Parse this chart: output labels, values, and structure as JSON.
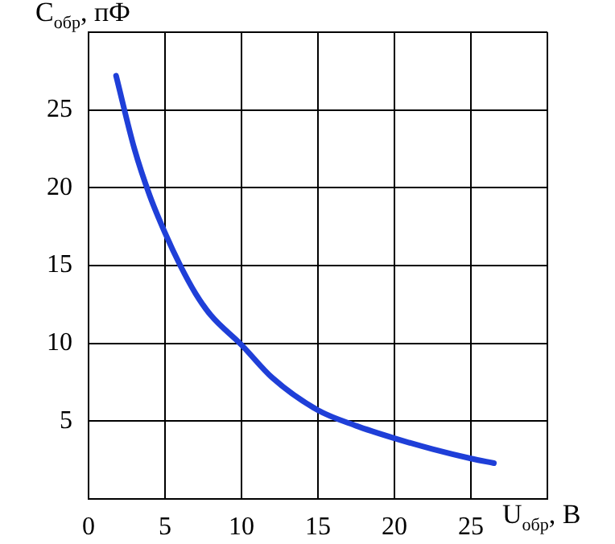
{
  "chart_data": {
    "type": "line",
    "xlabel": "U$_{обр}$, В",
    "ylabel": "C$_{обр}$, пФ",
    "xlim": [
      0,
      30
    ],
    "xticks": [
      0,
      5,
      10,
      15,
      20,
      25,
      {
        "value": 30,
        "label": null
      }
    ],
    "ylim": [
      0,
      30
    ],
    "yticks": [
      {
        "value": 0,
        "label": null
      },
      5,
      10,
      15,
      20,
      25,
      {
        "value": 30,
        "label": null
      }
    ],
    "grid": true,
    "legend": false,
    "marker": "none",
    "line_style": "solid",
    "series": [
      {
        "color": "#1f3fd8",
        "x": [
          1.8,
          3,
          4,
          5,
          6,
          7,
          8,
          10,
          12,
          15,
          17.5,
          20,
          22.5,
          25,
          26.5
        ],
        "values": [
          27.2,
          22.5,
          19.5,
          17.1,
          15,
          13.2,
          11.8,
          9.9,
          7.8,
          5.7,
          4.7,
          3.9,
          3.2,
          2.6,
          2.3
        ]
      }
    ]
  }
}
